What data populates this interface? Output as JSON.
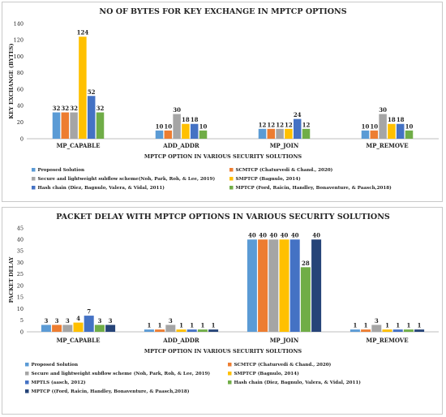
{
  "colors": {
    "light_blue": "#5b9bd5",
    "orange": "#ed7d31",
    "gray": "#a5a5a5",
    "yellow": "#ffc000",
    "blue": "#4472c4",
    "green": "#70ad47",
    "dark_navy": "#264478"
  },
  "chart_data": [
    {
      "type": "bar",
      "title": "NO OF BYTES FOR KEY EXCHANGE IN MPTCP OPTIONS",
      "xlabel": "MPTCP OPTION IN VARIOUS SECURITY SOLUTIONS",
      "ylabel": "KEY EXCHANGE (BYTES)",
      "ylim": [
        0,
        140
      ],
      "yticks": [
        0,
        20,
        40,
        60,
        80,
        100,
        120,
        140
      ],
      "grid": false,
      "legend": "bottom",
      "categories": [
        "MP_CAPABLE",
        "ADD_ADDR",
        "MP_JOIN",
        "MP_REMOVE"
      ],
      "series": [
        {
          "name": "Proposed Solution",
          "color": "#5b9bd5",
          "values": [
            32,
            10,
            12,
            10
          ]
        },
        {
          "name": "SCMTCP (Chaturvedi & Chand., 2020)",
          "color": "#ed7d31",
          "values": [
            32,
            10,
            12,
            10
          ]
        },
        {
          "name": "Secure and lightweight subflow scheme(Noh, Park, Roh, & Lee, 2019)",
          "color": "#a5a5a5",
          "values": [
            32,
            30,
            12,
            30
          ]
        },
        {
          "name": "SMPTCP (Bagnulo, 2014)",
          "color": "#ffc000",
          "values": [
            124,
            18,
            12,
            18
          ]
        },
        {
          "name": "Hash chain (Diez, Bagnulo, Valera, & Vidal, 2011)",
          "color": "#4472c4",
          "values": [
            52,
            18,
            24,
            18
          ]
        },
        {
          "name": "MPTCP (Ford, Raicin, Handley, Bonaventure, & Paasch,2018)",
          "color": "#70ad47",
          "values": [
            32,
            10,
            12,
            10
          ]
        }
      ]
    },
    {
      "type": "bar",
      "title": "PACKET DELAY WITH MPTCP OPTIONS IN VARIOUS SECURITY SOLUTIONS",
      "xlabel": "MPTCP OPTION IN VARIOUS SECURITY SOLUTIONS",
      "ylabel": "PACKET DELAY",
      "ylim": [
        0,
        45
      ],
      "yticks": [
        0,
        5,
        10,
        15,
        20,
        25,
        30,
        35,
        40,
        45
      ],
      "grid": false,
      "legend": "bottom",
      "categories": [
        "MP_CAPABLE",
        "ADD_ADDR",
        "MP_JOIN",
        "MP_REMOVE"
      ],
      "series": [
        {
          "name": "Proposed Solution",
          "color": "#5b9bd5",
          "values": [
            3,
            1,
            40,
            1
          ]
        },
        {
          "name": "SCMTCP (Chaturvedi & Chand., 2020)",
          "color": "#ed7d31",
          "values": [
            3,
            1,
            40,
            1
          ]
        },
        {
          "name": "Secure and lightweight subflow scheme (Noh, Park, Roh, & Lee, 2019)",
          "color": "#a5a5a5",
          "values": [
            3,
            3,
            40,
            3
          ]
        },
        {
          "name": "SMPTCP (Bagnulo, 2014)",
          "color": "#ffc000",
          "values": [
            4,
            1,
            40,
            1
          ]
        },
        {
          "name": "MPTLS (aasch, 2012)",
          "color": "#4472c4",
          "values": [
            7,
            1,
            40,
            1
          ]
        },
        {
          "name": "Hash chain (Diez, Bagnulo, Valera, & Vidal, 2011)",
          "color": "#70ad47",
          "values": [
            3,
            1,
            28,
            1
          ]
        },
        {
          "name": "MPTCP ((Ford, Raicin, Handley, Bonaventure, & Paasch,2018)",
          "color": "#264478",
          "values": [
            3,
            1,
            40,
            1
          ]
        }
      ]
    }
  ]
}
